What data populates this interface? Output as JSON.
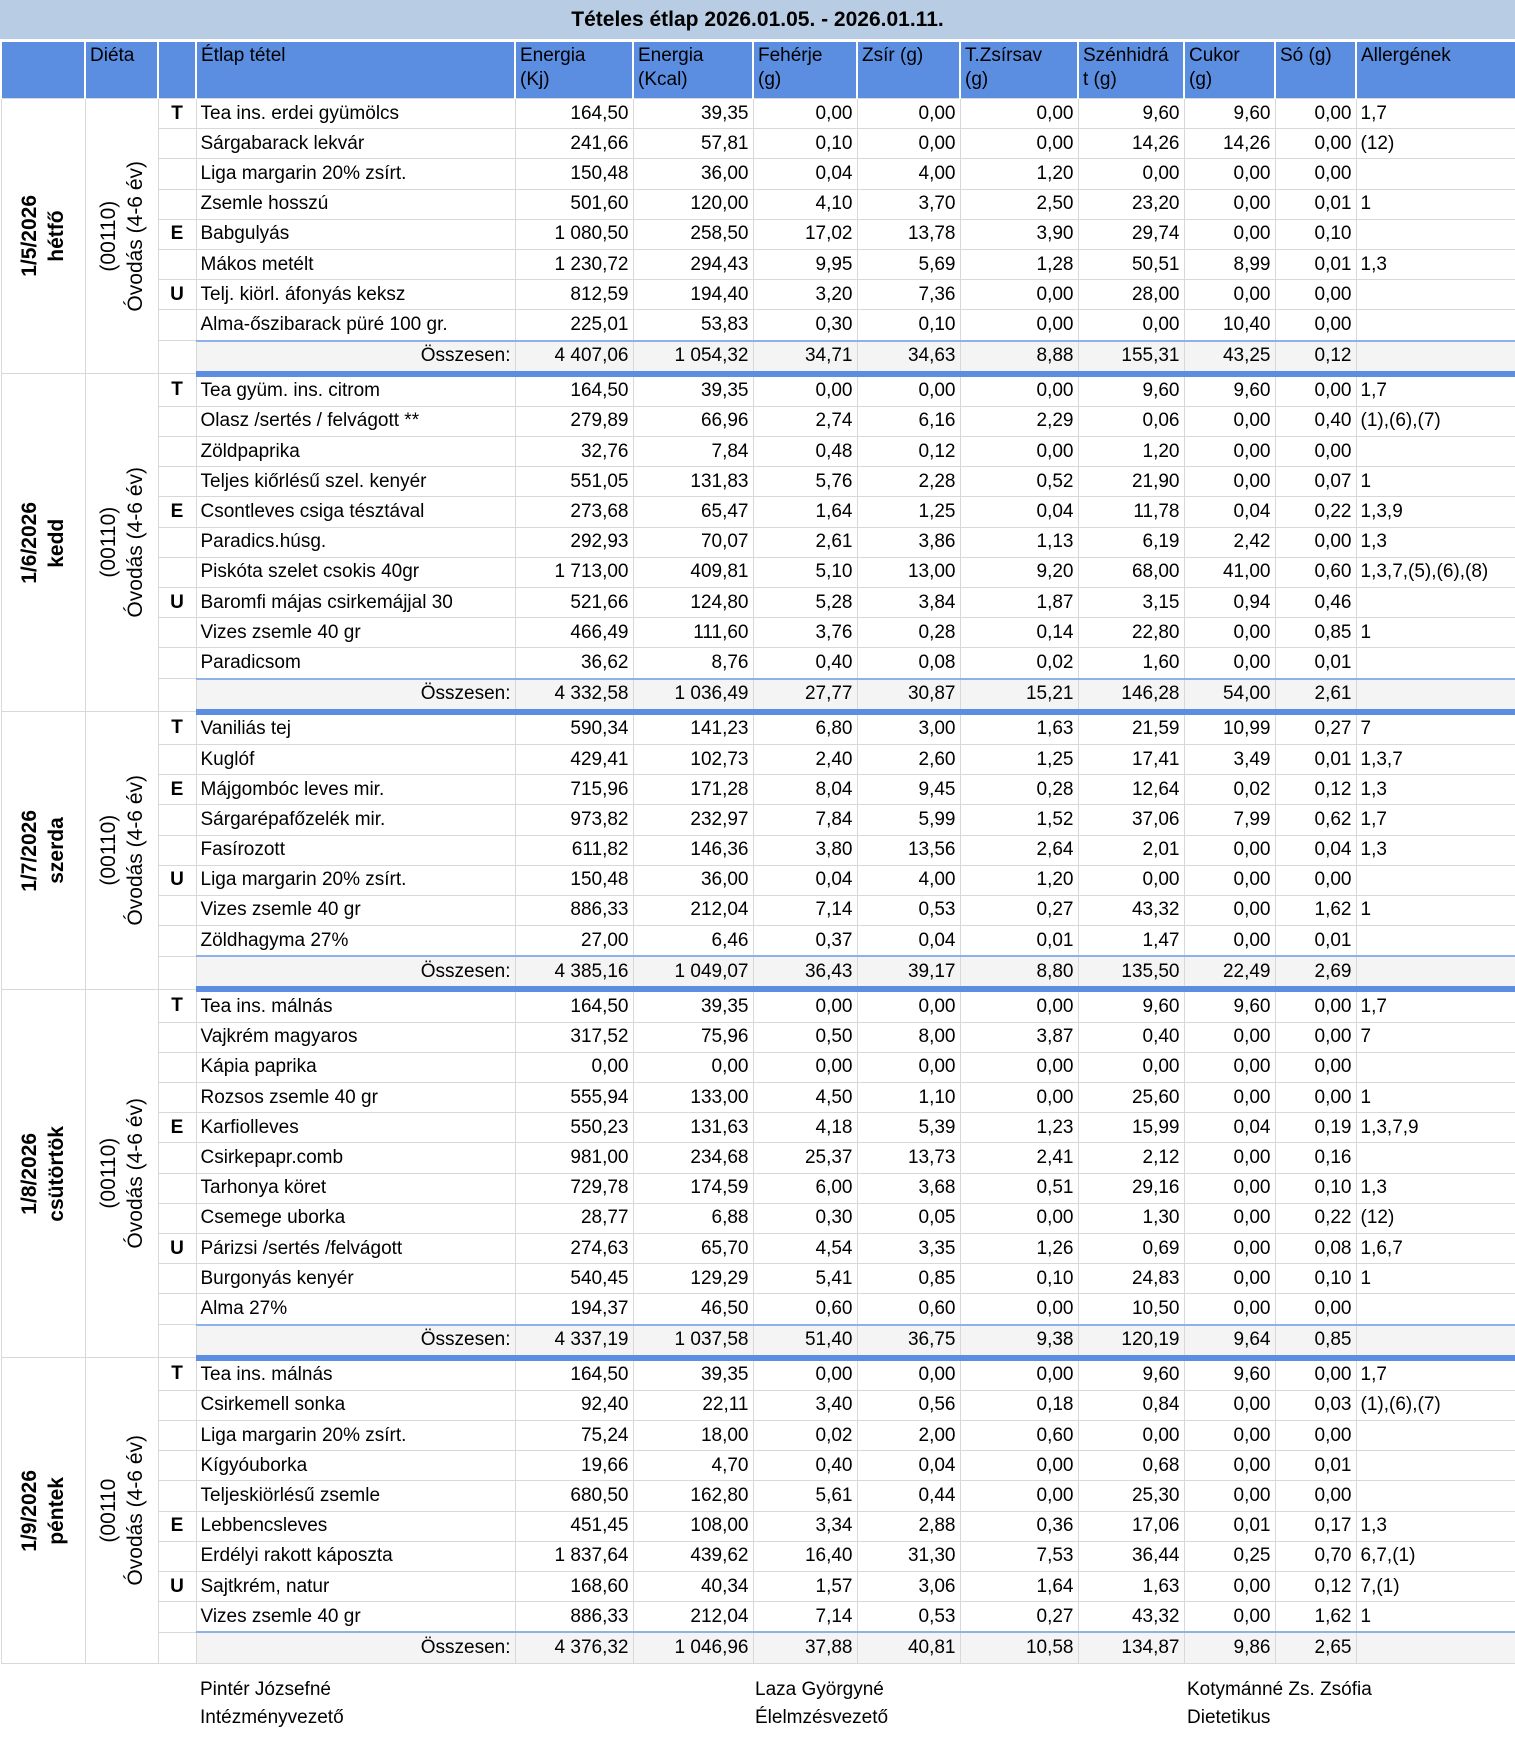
{
  "title": "Tételes étlap 2026.01.05. - 2026.01.11.",
  "header": {
    "diet": "Diéta",
    "columns": [
      [
        "Étlap tétel"
      ],
      [
        "Energia",
        "(Kj)"
      ],
      [
        "Energia",
        "(Kcal)"
      ],
      [
        "Fehérje",
        "(g)"
      ],
      [
        "Zsír (g)"
      ],
      [
        "T.Zsírsav",
        "(g)"
      ],
      [
        "Szénhidrá",
        "t (g)"
      ],
      [
        "Cukor",
        "(g)"
      ],
      [
        "Só (g)"
      ],
      [
        "Allergének"
      ]
    ]
  },
  "days": [
    {
      "date": "1/5/2026",
      "day": "hétfő",
      "diet": [
        "(00110)",
        "Óvodás (4-6 év)"
      ],
      "items": [
        {
          "meal": "T",
          "name": "Tea ins. erdei gyümölcs",
          "values": [
            "164,50",
            "39,35",
            "0,00",
            "0,00",
            "0,00",
            "9,60",
            "9,60",
            "0,00"
          ],
          "allergens": "1,7"
        },
        {
          "name": "Sárgabarack lekvár",
          "values": [
            "241,66",
            "57,81",
            "0,10",
            "0,00",
            "0,00",
            "14,26",
            "14,26",
            "0,00"
          ],
          "allergens": "(12)"
        },
        {
          "name": "Liga margarin 20% zsírt.",
          "values": [
            "150,48",
            "36,00",
            "0,04",
            "4,00",
            "1,20",
            "0,00",
            "0,00",
            "0,00"
          ]
        },
        {
          "name": "Zsemle hosszú",
          "values": [
            "501,60",
            "120,00",
            "4,10",
            "3,70",
            "2,50",
            "23,20",
            "0,00",
            "0,01"
          ],
          "allergens": "1"
        },
        {
          "meal": "E",
          "name": "Babgulyás",
          "values": [
            "1 080,50",
            "258,50",
            "17,02",
            "13,78",
            "3,90",
            "29,74",
            "0,00",
            "0,10"
          ]
        },
        {
          "name": "Mákos metélt",
          "values": [
            "1 230,72",
            "294,43",
            "9,95",
            "5,69",
            "1,28",
            "50,51",
            "8,99",
            "0,01"
          ],
          "allergens": "1,3"
        },
        {
          "meal": "U",
          "name": "Telj. kiörl. áfonyás keksz",
          "values": [
            "812,59",
            "194,40",
            "3,20",
            "7,36",
            "0,00",
            "28,00",
            "0,00",
            "0,00"
          ]
        },
        {
          "name": "Alma-őszibarack püré 100 gr.",
          "values": [
            "225,01",
            "53,83",
            "0,30",
            "0,10",
            "0,00",
            "0,00",
            "10,40",
            "0,00"
          ]
        }
      ],
      "total": {
        "label": "Összesen:",
        "values": [
          "4 407,06",
          "1 054,32",
          "34,71",
          "34,63",
          "8,88",
          "155,31",
          "43,25",
          "0,12"
        ]
      }
    },
    {
      "date": "1/6/2026",
      "day": "kedd",
      "diet": [
        "(00110)",
        "Óvodás (4-6 év)"
      ],
      "items": [
        {
          "meal": "T",
          "name": "Tea gyüm. ins. citrom",
          "values": [
            "164,50",
            "39,35",
            "0,00",
            "0,00",
            "0,00",
            "9,60",
            "9,60",
            "0,00"
          ],
          "allergens": "1,7"
        },
        {
          "name": "Olasz /sertés / felvágott **",
          "values": [
            "279,89",
            "66,96",
            "2,74",
            "6,16",
            "2,29",
            "0,06",
            "0,00",
            "0,40"
          ],
          "allergens": "(1),(6),(7)"
        },
        {
          "name": "Zöldpaprika",
          "values": [
            "32,76",
            "7,84",
            "0,48",
            "0,12",
            "0,00",
            "1,20",
            "0,00",
            "0,00"
          ]
        },
        {
          "name": "Teljes kiőrlésű szel. kenyér",
          "values": [
            "551,05",
            "131,83",
            "5,76",
            "2,28",
            "0,52",
            "21,90",
            "0,00",
            "0,07"
          ],
          "allergens": "1"
        },
        {
          "meal": "E",
          "name": "Csontleves csiga tésztával",
          "values": [
            "273,68",
            "65,47",
            "1,64",
            "1,25",
            "0,04",
            "11,78",
            "0,04",
            "0,22"
          ],
          "allergens": "1,3,9"
        },
        {
          "name": "Paradics.húsg.",
          "values": [
            "292,93",
            "70,07",
            "2,61",
            "3,86",
            "1,13",
            "6,19",
            "2,42",
            "0,00"
          ],
          "allergens": "1,3"
        },
        {
          "name": "Piskóta szelet csokis 40gr",
          "values": [
            "1 713,00",
            "409,81",
            "5,10",
            "13,00",
            "9,20",
            "68,00",
            "41,00",
            "0,60"
          ],
          "allergens": "1,3,7,(5),(6),(8)"
        },
        {
          "meal": "U",
          "name": "Baromfi májas csirkemájjal 30",
          "values": [
            "521,66",
            "124,80",
            "5,28",
            "3,84",
            "1,87",
            "3,15",
            "0,94",
            "0,46"
          ]
        },
        {
          "name": "Vizes zsemle 40 gr",
          "values": [
            "466,49",
            "111,60",
            "3,76",
            "0,28",
            "0,14",
            "22,80",
            "0,00",
            "0,85"
          ],
          "allergens": "1"
        },
        {
          "name": "Paradicsom",
          "values": [
            "36,62",
            "8,76",
            "0,40",
            "0,08",
            "0,02",
            "1,60",
            "0,00",
            "0,01"
          ]
        }
      ],
      "total": {
        "label": "Összesen:",
        "values": [
          "4 332,58",
          "1 036,49",
          "27,77",
          "30,87",
          "15,21",
          "146,28",
          "54,00",
          "2,61"
        ]
      }
    },
    {
      "date": "1/7/2026",
      "day": "szerda",
      "diet": [
        "(00110)",
        "Óvodás (4-6 év)"
      ],
      "items": [
        {
          "meal": "T",
          "name": "Vaniliás tej",
          "values": [
            "590,34",
            "141,23",
            "6,80",
            "3,00",
            "1,63",
            "21,59",
            "10,99",
            "0,27"
          ],
          "allergens": "7"
        },
        {
          "name": "Kuglóf",
          "values": [
            "429,41",
            "102,73",
            "2,40",
            "2,60",
            "1,25",
            "17,41",
            "3,49",
            "0,01"
          ],
          "allergens": "1,3,7"
        },
        {
          "meal": "E",
          "name": "Májgombóc leves mir.",
          "values": [
            "715,96",
            "171,28",
            "8,04",
            "9,45",
            "0,28",
            "12,64",
            "0,02",
            "0,12"
          ],
          "allergens": "1,3"
        },
        {
          "name": "Sárgarépafőzelék mir.",
          "values": [
            "973,82",
            "232,97",
            "7,84",
            "5,99",
            "1,52",
            "37,06",
            "7,99",
            "0,62"
          ],
          "allergens": "1,7"
        },
        {
          "name": "Fasírozott",
          "values": [
            "611,82",
            "146,36",
            "3,80",
            "13,56",
            "2,64",
            "2,01",
            "0,00",
            "0,04"
          ],
          "allergens": "1,3"
        },
        {
          "meal": "U",
          "name": "Liga margarin 20% zsírt.",
          "values": [
            "150,48",
            "36,00",
            "0,04",
            "4,00",
            "1,20",
            "0,00",
            "0,00",
            "0,00"
          ]
        },
        {
          "name": "Vizes zsemle 40 gr",
          "values": [
            "886,33",
            "212,04",
            "7,14",
            "0,53",
            "0,27",
            "43,32",
            "0,00",
            "1,62"
          ],
          "allergens": "1"
        },
        {
          "name": "Zöldhagyma 27%",
          "values": [
            "27,00",
            "6,46",
            "0,37",
            "0,04",
            "0,01",
            "1,47",
            "0,00",
            "0,01"
          ]
        }
      ],
      "total": {
        "label": "Összesen:",
        "values": [
          "4 385,16",
          "1 049,07",
          "36,43",
          "39,17",
          "8,80",
          "135,50",
          "22,49",
          "2,69"
        ]
      }
    },
    {
      "date": "1/8/2026",
      "day": "csütörtök",
      "diet": [
        "(00110)",
        "Óvodás (4-6 év)"
      ],
      "items": [
        {
          "meal": "T",
          "name": "Tea ins. málnás",
          "values": [
            "164,50",
            "39,35",
            "0,00",
            "0,00",
            "0,00",
            "9,60",
            "9,60",
            "0,00"
          ],
          "allergens": "1,7"
        },
        {
          "name": "Vajkrém magyaros",
          "values": [
            "317,52",
            "75,96",
            "0,50",
            "8,00",
            "3,87",
            "0,40",
            "0,00",
            "0,00"
          ],
          "allergens": "7"
        },
        {
          "name": "Kápia paprika",
          "values": [
            "0,00",
            "0,00",
            "0,00",
            "0,00",
            "0,00",
            "0,00",
            "0,00",
            "0,00"
          ]
        },
        {
          "name": "Rozsos zsemle 40 gr",
          "values": [
            "555,94",
            "133,00",
            "4,50",
            "1,10",
            "0,00",
            "25,60",
            "0,00",
            "0,00"
          ],
          "allergens": "1"
        },
        {
          "meal": "E",
          "name": "Karfiolleves",
          "values": [
            "550,23",
            "131,63",
            "4,18",
            "5,39",
            "1,23",
            "15,99",
            "0,04",
            "0,19"
          ],
          "allergens": "1,3,7,9"
        },
        {
          "name": "Csirkepapr.comb",
          "values": [
            "981,00",
            "234,68",
            "25,37",
            "13,73",
            "2,41",
            "2,12",
            "0,00",
            "0,16"
          ]
        },
        {
          "name": "Tarhonya köret",
          "values": [
            "729,78",
            "174,59",
            "6,00",
            "3,68",
            "0,51",
            "29,16",
            "0,00",
            "0,10"
          ],
          "allergens": "1,3"
        },
        {
          "name": "Csemege uborka",
          "values": [
            "28,77",
            "6,88",
            "0,30",
            "0,05",
            "0,00",
            "1,30",
            "0,00",
            "0,22"
          ],
          "allergens": "(12)"
        },
        {
          "meal": "U",
          "name": "Párizsi /sertés /felvágott",
          "values": [
            "274,63",
            "65,70",
            "4,54",
            "3,35",
            "1,26",
            "0,69",
            "0,00",
            "0,08"
          ],
          "allergens": "1,6,7"
        },
        {
          "name": "Burgonyás kenyér",
          "values": [
            "540,45",
            "129,29",
            "5,41",
            "0,85",
            "0,10",
            "24,83",
            "0,00",
            "0,10"
          ],
          "allergens": "1"
        },
        {
          "name": "Alma 27%",
          "values": [
            "194,37",
            "46,50",
            "0,60",
            "0,60",
            "0,00",
            "10,50",
            "0,00",
            "0,00"
          ]
        }
      ],
      "total": {
        "label": "Összesen:",
        "values": [
          "4 337,19",
          "1 037,58",
          "51,40",
          "36,75",
          "9,38",
          "120,19",
          "9,64",
          "0,85"
        ]
      }
    },
    {
      "date": "1/9/2026",
      "day": "péntek",
      "diet": [
        "(00110",
        "Óvodás (4-6 év)"
      ],
      "items": [
        {
          "meal": "T",
          "name": "Tea ins. málnás",
          "values": [
            "164,50",
            "39,35",
            "0,00",
            "0,00",
            "0,00",
            "9,60",
            "9,60",
            "0,00"
          ],
          "allergens": "1,7"
        },
        {
          "name": "Csirkemell sonka",
          "values": [
            "92,40",
            "22,11",
            "3,40",
            "0,56",
            "0,18",
            "0,84",
            "0,00",
            "0,03"
          ],
          "allergens": "(1),(6),(7)"
        },
        {
          "name": "Liga margarin 20% zsírt.",
          "values": [
            "75,24",
            "18,00",
            "0,02",
            "2,00",
            "0,60",
            "0,00",
            "0,00",
            "0,00"
          ]
        },
        {
          "name": "Kígyóuborka",
          "values": [
            "19,66",
            "4,70",
            "0,40",
            "0,04",
            "0,00",
            "0,68",
            "0,00",
            "0,01"
          ]
        },
        {
          "name": "Teljeskiörlésű zsemle",
          "values": [
            "680,50",
            "162,80",
            "5,61",
            "0,44",
            "0,00",
            "25,30",
            "0,00",
            "0,00"
          ]
        },
        {
          "meal": "E",
          "name": "Lebbencsleves",
          "values": [
            "451,45",
            "108,00",
            "3,34",
            "2,88",
            "0,36",
            "17,06",
            "0,01",
            "0,17"
          ],
          "allergens": "1,3"
        },
        {
          "name": "Erdélyi rakott káposzta",
          "values": [
            "1 837,64",
            "439,62",
            "16,40",
            "31,30",
            "7,53",
            "36,44",
            "0,25",
            "0,70"
          ],
          "allergens": "6,7,(1)"
        },
        {
          "meal": "U",
          "name": "Sajtkrém, natur",
          "values": [
            "168,60",
            "40,34",
            "1,57",
            "3,06",
            "1,64",
            "1,63",
            "0,00",
            "0,12"
          ],
          "allergens": "7,(1)"
        },
        {
          "name": "Vizes zsemle 40 gr",
          "values": [
            "886,33",
            "212,04",
            "7,14",
            "0,53",
            "0,27",
            "43,32",
            "0,00",
            "1,62"
          ],
          "allergens": "1"
        }
      ],
      "total": {
        "label": "Összesen:",
        "values": [
          "4 376,32",
          "1 046,96",
          "37,88",
          "40,81",
          "10,58",
          "134,87",
          "9,86",
          "2,65"
        ]
      }
    }
  ],
  "signatures": [
    {
      "name": "Pintér Józsefné",
      "role": "Intézményvezető"
    },
    {
      "name": "Laza Györgyné",
      "role": "Élelmzésvezető"
    },
    {
      "name": "Kotymánné Zs. Zsófia",
      "role": "Dietetikus"
    }
  ]
}
